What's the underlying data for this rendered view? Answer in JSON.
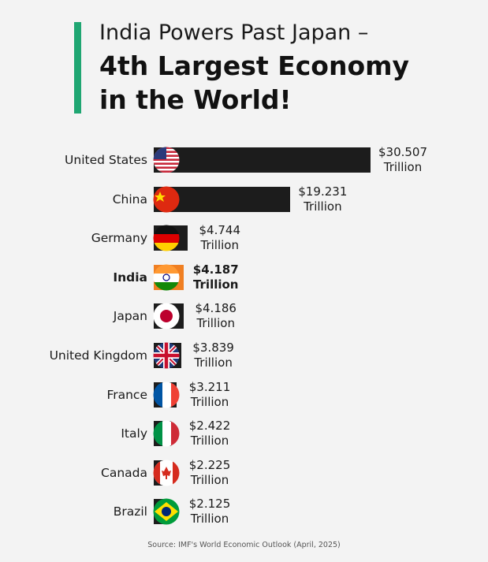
{
  "chart_data": {
    "type": "bar",
    "orientation": "horizontal",
    "title": "India Powers Past Japan –",
    "subtitle": "4th Largest Economy in the World!",
    "categories": [
      "United States",
      "China",
      "Germany",
      "India",
      "Japan",
      "United Kingdom",
      "France",
      "Italy",
      "Canada",
      "Brazil"
    ],
    "values": [
      30.507,
      19.231,
      4.744,
      4.187,
      4.186,
      3.839,
      3.211,
      2.422,
      2.225,
      2.125
    ],
    "value_labels": [
      "$30.507 Trillion",
      "$19.231 Trillion",
      "$4.744 Trillion",
      "$4.187 Trillion",
      "$4.186 Trillion",
      "$3.839 Trillion",
      "$3.211 Trillion",
      "$2.422 Trillion",
      "$2.225 Trillion",
      "$2.125 Trillion"
    ],
    "color": "#1c1c1c",
    "colors": [
      "#1c1c1c",
      "#1c1c1c",
      "#1c1c1c",
      "#f07f22",
      "#1c1c1c",
      "#1c1c1c",
      "#1c1c1c",
      "#1c1c1c",
      "#1c1c1c",
      "#1c1c1c"
    ],
    "source": "Source: IMF's World Economic Outlook (April, 2025)"
  }
}
